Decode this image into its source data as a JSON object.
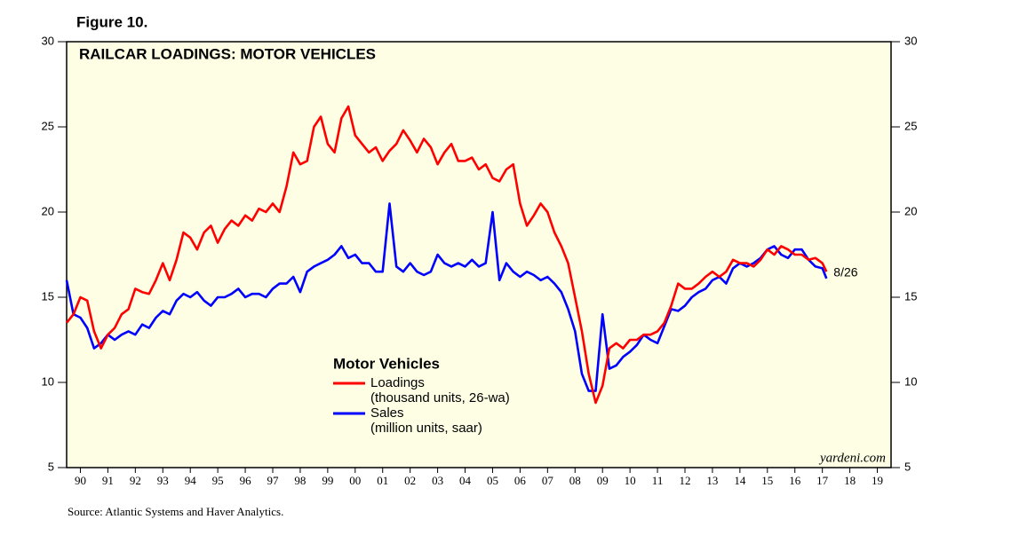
{
  "chart_data": {
    "type": "line",
    "figure_label": "Figure 10.",
    "title": "RAILCAR LOADINGS: MOTOR VEHICLES",
    "legend_title": "Motor Vehicles",
    "source": "Source: Atlantic Systems and Haver Analytics.",
    "watermark": "yardeni.com",
    "annotation": "8/26",
    "background": "#fefee4",
    "xlim": [
      1990,
      2020
    ],
    "xticks": [
      {
        "value": 1990.5,
        "label": "90"
      },
      {
        "value": 1991.5,
        "label": "91"
      },
      {
        "value": 1992.5,
        "label": "92"
      },
      {
        "value": 1993.5,
        "label": "93"
      },
      {
        "value": 1994.5,
        "label": "94"
      },
      {
        "value": 1995.5,
        "label": "95"
      },
      {
        "value": 1996.5,
        "label": "96"
      },
      {
        "value": 1997.5,
        "label": "97"
      },
      {
        "value": 1998.5,
        "label": "98"
      },
      {
        "value": 1999.5,
        "label": "99"
      },
      {
        "value": 2000.5,
        "label": "00"
      },
      {
        "value": 2001.5,
        "label": "01"
      },
      {
        "value": 2002.5,
        "label": "02"
      },
      {
        "value": 2003.5,
        "label": "03"
      },
      {
        "value": 2004.5,
        "label": "04"
      },
      {
        "value": 2005.5,
        "label": "05"
      },
      {
        "value": 2006.5,
        "label": "06"
      },
      {
        "value": 2007.5,
        "label": "07"
      },
      {
        "value": 2008.5,
        "label": "08"
      },
      {
        "value": 2009.5,
        "label": "09"
      },
      {
        "value": 2010.5,
        "label": "10"
      },
      {
        "value": 2011.5,
        "label": "11"
      },
      {
        "value": 2012.5,
        "label": "12"
      },
      {
        "value": 2013.5,
        "label": "13"
      },
      {
        "value": 2014.5,
        "label": "14"
      },
      {
        "value": 2015.5,
        "label": "15"
      },
      {
        "value": 2016.5,
        "label": "16"
      },
      {
        "value": 2017.5,
        "label": "17"
      },
      {
        "value": 2018.5,
        "label": "18"
      },
      {
        "value": 2019.5,
        "label": "19"
      }
    ],
    "ylim": [
      5,
      30
    ],
    "yticks": [
      5,
      10,
      15,
      20,
      25,
      30
    ],
    "y2lim": [
      5,
      30
    ],
    "y2ticks": [
      5,
      10,
      15,
      20,
      25,
      30
    ],
    "x": [
      1990,
      1990.25,
      1990.5,
      1990.75,
      1991,
      1991.25,
      1991.5,
      1991.75,
      1992,
      1992.25,
      1992.5,
      1992.75,
      1993,
      1993.25,
      1993.5,
      1993.75,
      1994,
      1994.25,
      1994.5,
      1994.75,
      1995,
      1995.25,
      1995.5,
      1995.75,
      1996,
      1996.25,
      1996.5,
      1996.75,
      1997,
      1997.25,
      1997.5,
      1997.75,
      1998,
      1998.25,
      1998.5,
      1998.75,
      1999,
      1999.25,
      1999.5,
      1999.75,
      2000,
      2000.25,
      2000.5,
      2000.75,
      2001,
      2001.25,
      2001.5,
      2001.75,
      2002,
      2002.25,
      2002.5,
      2002.75,
      2003,
      2003.25,
      2003.5,
      2003.75,
      2004,
      2004.25,
      2004.5,
      2004.75,
      2005,
      2005.25,
      2005.5,
      2005.75,
      2006,
      2006.25,
      2006.5,
      2006.75,
      2007,
      2007.25,
      2007.5,
      2007.75,
      2008,
      2008.25,
      2008.5,
      2008.75,
      2009,
      2009.25,
      2009.5,
      2009.75,
      2010,
      2010.25,
      2010.5,
      2010.75,
      2011,
      2011.25,
      2011.5,
      2011.75,
      2012,
      2012.25,
      2012.5,
      2012.75,
      2013,
      2013.25,
      2013.5,
      2013.75,
      2014,
      2014.25,
      2014.5,
      2014.75,
      2015,
      2015.25,
      2015.5,
      2015.75,
      2016,
      2016.25,
      2016.5,
      2016.75,
      2017,
      2017.25,
      2017.5,
      2017.65
    ],
    "series": [
      {
        "name": "Loadings",
        "unit": "(thousand units, 26-wa)",
        "color": "#ff0000",
        "values": [
          13.5,
          14.0,
          15.0,
          14.8,
          13.0,
          12.0,
          12.8,
          13.2,
          14.0,
          14.3,
          15.5,
          15.3,
          15.2,
          16.0,
          17.0,
          16.0,
          17.2,
          18.8,
          18.5,
          17.8,
          18.8,
          19.2,
          18.2,
          19.0,
          19.5,
          19.2,
          19.8,
          19.5,
          20.2,
          20.0,
          20.5,
          20.0,
          21.5,
          23.5,
          22.8,
          23.0,
          25.0,
          25.6,
          24.0,
          23.5,
          25.5,
          26.2,
          24.5,
          24.0,
          23.5,
          23.8,
          23.0,
          23.6,
          24.0,
          24.8,
          24.2,
          23.5,
          24.3,
          23.8,
          22.8,
          23.5,
          24.0,
          23.0,
          23.0,
          23.2,
          22.5,
          22.8,
          22.0,
          21.8,
          22.5,
          22.8,
          20.5,
          19.2,
          19.8,
          20.5,
          20.0,
          18.8,
          18.0,
          17.0,
          15.0,
          13.0,
          10.5,
          8.8,
          9.8,
          12.0,
          12.3,
          12.0,
          12.5,
          12.5,
          12.8,
          12.8,
          13.0,
          13.5,
          14.5,
          15.8,
          15.5,
          15.5,
          15.8,
          16.2,
          16.5,
          16.2,
          16.5,
          17.2,
          17.0,
          17.0,
          16.8,
          17.2,
          17.8,
          17.5,
          18.0,
          17.8,
          17.5,
          17.5,
          17.2,
          17.3,
          17.0,
          16.5
        ]
      },
      {
        "name": "Sales",
        "unit": "(million units, saar)",
        "color": "#0000ff",
        "values": [
          16.0,
          14.0,
          13.8,
          13.2,
          12.0,
          12.3,
          12.8,
          12.5,
          12.8,
          13.0,
          12.8,
          13.4,
          13.2,
          13.8,
          14.2,
          14.0,
          14.8,
          15.2,
          15.0,
          15.3,
          14.8,
          14.5,
          15.0,
          15.0,
          15.2,
          15.5,
          15.0,
          15.2,
          15.2,
          15.0,
          15.5,
          15.8,
          15.8,
          16.2,
          15.3,
          16.5,
          16.8,
          17.0,
          17.2,
          17.5,
          18.0,
          17.3,
          17.5,
          17.0,
          17.0,
          16.5,
          16.5,
          20.5,
          16.8,
          16.5,
          17.0,
          16.5,
          16.3,
          16.5,
          17.5,
          17.0,
          16.8,
          17.0,
          16.8,
          17.2,
          16.8,
          17.0,
          20.0,
          16.0,
          17.0,
          16.5,
          16.2,
          16.5,
          16.3,
          16.0,
          16.2,
          15.8,
          15.3,
          14.3,
          13.0,
          10.5,
          9.5,
          9.5,
          14.0,
          10.8,
          11.0,
          11.5,
          11.8,
          12.2,
          12.8,
          12.5,
          12.3,
          13.3,
          14.3,
          14.2,
          14.5,
          15.0,
          15.3,
          15.5,
          16.0,
          16.2,
          15.8,
          16.7,
          17.0,
          16.8,
          17.0,
          17.3,
          17.8,
          18.0,
          17.5,
          17.3,
          17.8,
          17.8,
          17.2,
          16.8,
          16.7,
          16.1
        ]
      }
    ]
  }
}
